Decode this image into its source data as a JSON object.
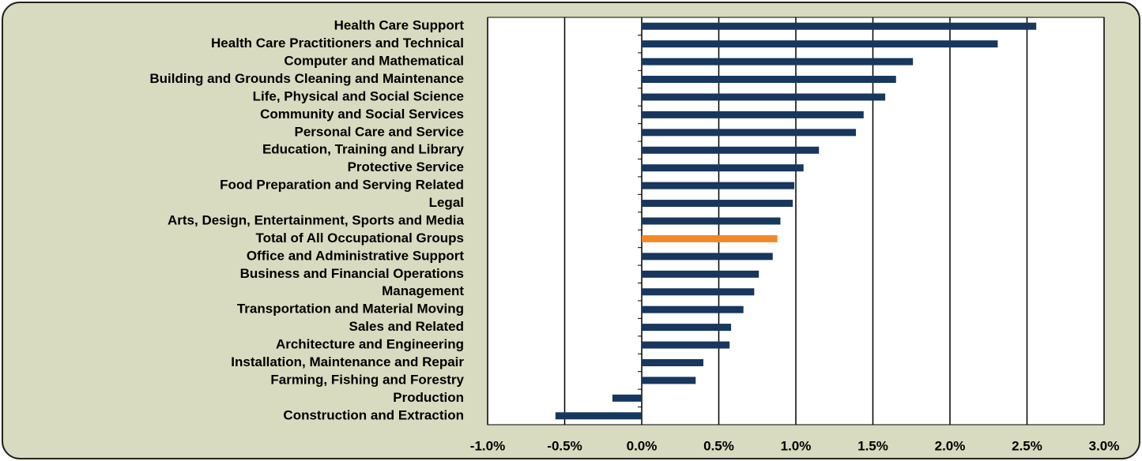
{
  "chart_data": {
    "type": "bar",
    "orientation": "horizontal",
    "categories": [
      "Health Care Support",
      "Health Care Practitioners and Technical",
      "Computer and Mathematical",
      "Building and Grounds Cleaning and Maintenance",
      "Life, Physical and Social Science",
      "Community and Social Services",
      "Personal Care and Service",
      "Education, Training and Library",
      "Protective Service",
      "Food Preparation and Serving Related",
      "Legal",
      "Arts, Design, Entertainment, Sports and Media",
      "Total of All Occupational Groups",
      "Office and Administrative Support",
      "Business and Financial Operations",
      "Management",
      "Transportation and Material Moving",
      "Sales and Related",
      "Architecture and Engineering",
      "Installation, Maintenance and Repair",
      "Farming, Fishing and Forestry",
      "Production",
      "Construction and Extraction"
    ],
    "values": [
      2.56,
      2.31,
      1.76,
      1.65,
      1.58,
      1.44,
      1.39,
      1.15,
      1.05,
      0.99,
      0.98,
      0.9,
      0.88,
      0.85,
      0.76,
      0.73,
      0.66,
      0.58,
      0.57,
      0.4,
      0.35,
      -0.19,
      -0.56
    ],
    "colors": [
      "#17375e",
      "#17375e",
      "#17375e",
      "#17375e",
      "#17375e",
      "#17375e",
      "#17375e",
      "#17375e",
      "#17375e",
      "#17375e",
      "#17375e",
      "#17375e",
      "#f0892a",
      "#17375e",
      "#17375e",
      "#17375e",
      "#17375e",
      "#17375e",
      "#17375e",
      "#17375e",
      "#17375e",
      "#17375e",
      "#17375e"
    ],
    "xlim": [
      -1.0,
      3.0
    ],
    "xticks": [
      {
        "value": -1.0,
        "label": "-1.0%"
      },
      {
        "value": -0.5,
        "label": "-0.5%"
      },
      {
        "value": 0,
        "label": "0.0%"
      },
      {
        "value": 0.5,
        "label": "0.5%"
      },
      {
        "value": 1.0,
        "label": "1.0%"
      },
      {
        "value": 1.5,
        "label": "1.5%"
      },
      {
        "value": 2.0,
        "label": "2.0%"
      },
      {
        "value": 2.5,
        "label": "2.5%"
      },
      {
        "value": 3.0,
        "label": "3.0%"
      }
    ],
    "grid": true
  }
}
